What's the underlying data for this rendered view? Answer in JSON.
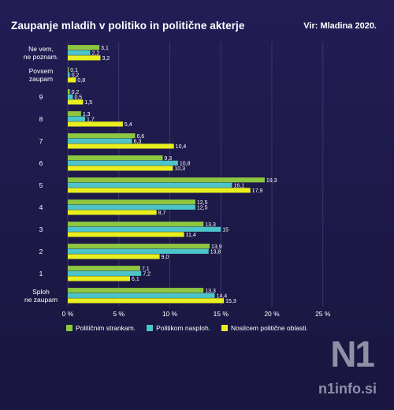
{
  "header": {
    "title": "Zaupanje mladih v politiko in politične akterje",
    "source": "Vir: Mladina 2020."
  },
  "branding": {
    "logo_text": "N1",
    "url": "n1info.si"
  },
  "colors": {
    "background": "#1d1a4a",
    "series": [
      "#8dc63f",
      "#4cc4c8",
      "#e8ef1e"
    ]
  },
  "chart_data": {
    "type": "bar",
    "orientation": "horizontal",
    "title": "Zaupanje mladih v politiko in politične akterje",
    "categories": [
      [
        "Ne vem,",
        "ne poznam."
      ],
      [
        "Povsem",
        "zaupam"
      ],
      [
        "9"
      ],
      [
        "8"
      ],
      [
        "7"
      ],
      [
        "6"
      ],
      [
        "5"
      ],
      [
        "4"
      ],
      [
        "3"
      ],
      [
        "2"
      ],
      [
        "1"
      ],
      [
        "Sploh",
        "ne zaupam"
      ]
    ],
    "series": [
      {
        "name": "Političnim strankam.",
        "values": [
          3.1,
          0.1,
          0.2,
          1.3,
          6.6,
          9.3,
          19.3,
          12.5,
          13.3,
          13.9,
          7.1,
          13.3
        ],
        "labels": [
          "3,1",
          "0,1",
          "0,2",
          "1,3",
          "6,6",
          "9,3",
          "19,3",
          "12,5",
          "13,3",
          "13,9",
          "7,1",
          "13,3"
        ]
      },
      {
        "name": "Politikom nasploh.",
        "values": [
          2.2,
          0.2,
          0.5,
          1.7,
          6.3,
          10.8,
          16.1,
          12.5,
          15,
          13.8,
          7.2,
          14.4
        ],
        "labels": [
          "2,2",
          "0,2",
          "0,5",
          "1,7",
          "6,3",
          "10,8",
          "16,1",
          "12,5",
          "15",
          "13,8",
          "7,2",
          "14,4"
        ]
      },
      {
        "name": "Nosilcem politične oblasti.",
        "values": [
          3.2,
          0.8,
          1.5,
          5.4,
          10.4,
          10.3,
          17.9,
          8.7,
          11.4,
          9.0,
          6.1,
          15.3
        ],
        "labels": [
          "3,2",
          "0,8",
          "1,5",
          "5,4",
          "10,4",
          "10,3",
          "17,9",
          "8,7",
          "11,4",
          "9,0",
          "6,1",
          "15,3"
        ]
      }
    ],
    "xlim": [
      0,
      25
    ],
    "xticks": [
      0,
      5,
      10,
      15,
      20,
      25
    ],
    "xtick_labels": [
      "0 %",
      "5 %",
      "10 %",
      "15 %",
      "20 %",
      "25 %"
    ],
    "grid": true,
    "legend": "bottom"
  }
}
